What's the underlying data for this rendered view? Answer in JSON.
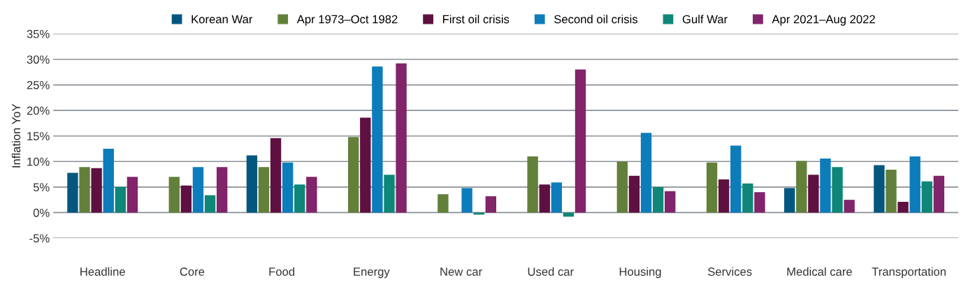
{
  "chart_data": {
    "type": "bar",
    "ylabel": "Inflation YoY",
    "categories": [
      "Headline",
      "Core",
      "Food",
      "Energy",
      "New car",
      "Used car",
      "Housing",
      "Services",
      "Medical care",
      "Transportation"
    ],
    "series": [
      {
        "name": "Korean War",
        "color": "#03577f",
        "values": [
          7.8,
          null,
          11.2,
          null,
          null,
          null,
          null,
          null,
          4.8,
          9.3
        ]
      },
      {
        "name": "Apr 1973–Oct 1982",
        "color": "#62803a",
        "values": [
          8.9,
          7.0,
          8.9,
          14.8,
          3.6,
          11.0,
          10.0,
          9.8,
          10.1,
          8.4
        ]
      },
      {
        "name": "First oil crisis",
        "color": "#5e1040",
        "values": [
          8.7,
          5.3,
          14.6,
          18.6,
          null,
          5.5,
          7.2,
          6.5,
          7.4,
          2.1
        ]
      },
      {
        "name": "Second oil crisis",
        "color": "#0d7cba",
        "values": [
          12.5,
          8.9,
          9.8,
          28.6,
          4.8,
          5.9,
          15.6,
          13.1,
          10.6,
          11.0
        ]
      },
      {
        "name": "Gulf War",
        "color": "#0f8677",
        "values": [
          5.0,
          3.4,
          5.5,
          7.4,
          -0.4,
          -0.8,
          5.0,
          5.7,
          8.9,
          6.1
        ]
      },
      {
        "name": "Apr 2021–Aug 2022",
        "color": "#812469",
        "values": [
          7.0,
          8.9,
          7.0,
          29.2,
          3.2,
          28.0,
          4.2,
          4.0,
          2.5,
          7.2
        ]
      }
    ],
    "ylim": [
      -5,
      35
    ],
    "yticks": [
      {
        "value": -5,
        "label": "-5%"
      },
      {
        "value": 0,
        "label": "0%"
      },
      {
        "value": 5,
        "label": "5%"
      },
      {
        "value": 10,
        "label": "10%"
      },
      {
        "value": 15,
        "label": "15%"
      },
      {
        "value": 20,
        "label": "20%"
      },
      {
        "value": 25,
        "label": "25%"
      },
      {
        "value": 30,
        "label": "30%"
      },
      {
        "value": 35,
        "label": "35%"
      }
    ],
    "grid": "y",
    "legend": "top"
  }
}
